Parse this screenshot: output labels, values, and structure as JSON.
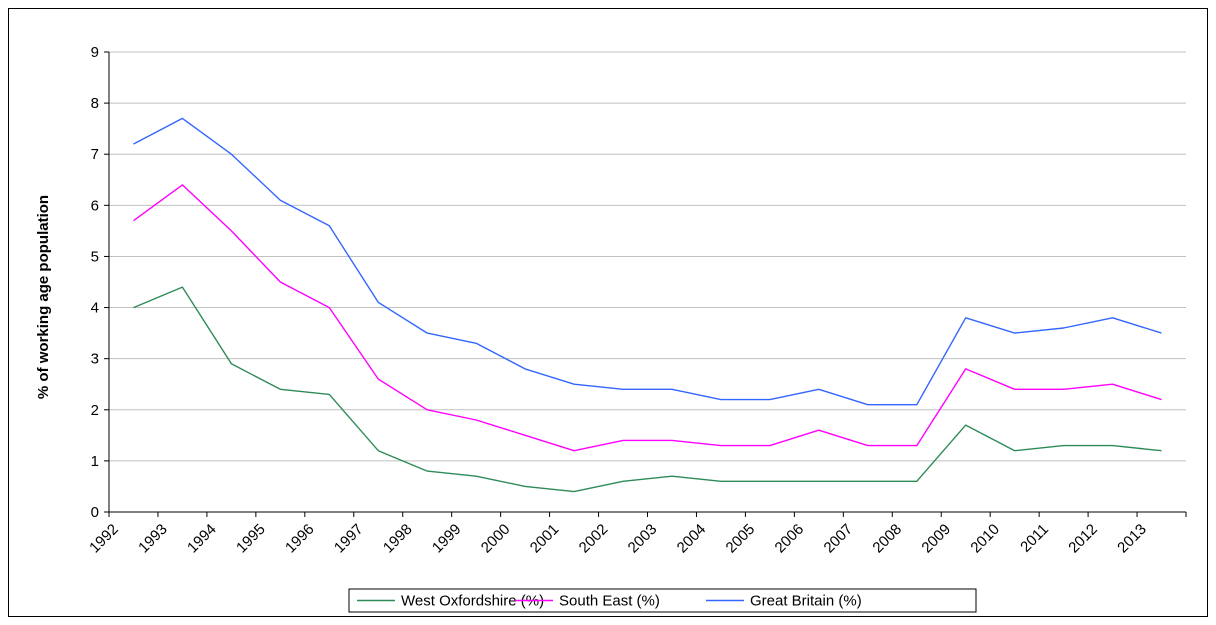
{
  "chart_data": {
    "type": "line",
    "title": "",
    "xlabel": "",
    "ylabel": "% of working age population",
    "ylim": [
      0,
      9
    ],
    "yticks": [
      0,
      1,
      2,
      3,
      4,
      5,
      6,
      7,
      8,
      9
    ],
    "grid": true,
    "legend_position": "bottom",
    "categories": [
      "1992",
      "1993",
      "1994",
      "1995",
      "1996",
      "1997",
      "1998",
      "1999",
      "2000",
      "2001",
      "2002",
      "2003",
      "2004",
      "2005",
      "2006",
      "2007",
      "2008",
      "2009",
      "2010",
      "2011",
      "2012",
      "2013"
    ],
    "series": [
      {
        "name": "West Oxfordshire (%)",
        "color": "#2e8b57",
        "values": [
          4.0,
          4.4,
          2.9,
          2.4,
          2.3,
          1.2,
          0.8,
          0.7,
          0.5,
          0.4,
          0.6,
          0.7,
          0.6,
          0.6,
          0.6,
          0.6,
          0.6,
          1.7,
          1.2,
          1.3,
          1.3,
          1.2
        ]
      },
      {
        "name": "South East (%)",
        "color": "#ff00ff",
        "values": [
          5.7,
          6.4,
          5.5,
          4.5,
          4.0,
          2.6,
          2.0,
          1.8,
          1.5,
          1.2,
          1.4,
          1.4,
          1.3,
          1.3,
          1.6,
          1.3,
          1.3,
          2.8,
          2.4,
          2.4,
          2.5,
          2.2
        ]
      },
      {
        "name": "Great Britain (%)",
        "color": "#3366ff",
        "values": [
          7.2,
          7.7,
          7.0,
          6.1,
          5.6,
          4.1,
          3.5,
          3.3,
          2.8,
          2.5,
          2.4,
          2.4,
          2.2,
          2.2,
          2.4,
          2.1,
          2.1,
          3.8,
          3.5,
          3.6,
          3.8,
          3.5
        ]
      }
    ]
  }
}
